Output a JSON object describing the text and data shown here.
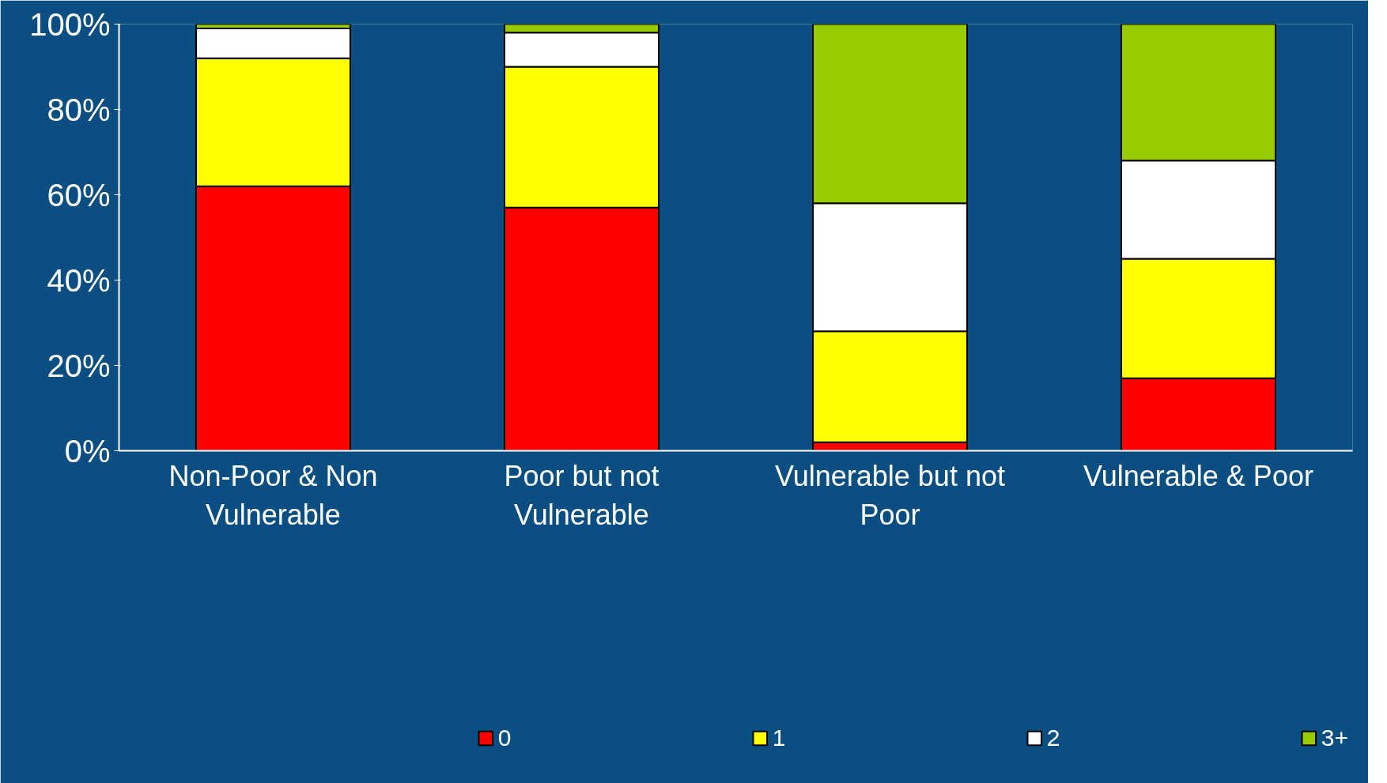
{
  "chart_data": {
    "type": "bar",
    "stacked": true,
    "categories": [
      "Non-Poor & Non Vulnerable",
      "Poor but not Vulnerable",
      "Vulnerable but not Poor",
      "Vulnerable & Poor"
    ],
    "series": [
      {
        "name": "0",
        "color": "#ff0000",
        "values": [
          62,
          57,
          2,
          17
        ]
      },
      {
        "name": "1",
        "color": "#ffff00",
        "values": [
          30,
          33,
          26,
          28
        ]
      },
      {
        "name": "2",
        "color": "#ffffff",
        "values": [
          7,
          8,
          30,
          23
        ]
      },
      {
        "name": "3+",
        "color": "#99cc00",
        "values": [
          1,
          2,
          42,
          32
        ]
      }
    ],
    "ylim": [
      0,
      100
    ],
    "yticks": [
      {
        "value": 0,
        "label": "0%"
      },
      {
        "value": 20,
        "label": "20%"
      },
      {
        "value": 40,
        "label": "40%"
      },
      {
        "value": 60,
        "label": "60%"
      },
      {
        "value": 80,
        "label": "80%"
      },
      {
        "value": 100,
        "label": "100%"
      }
    ],
    "grid": false,
    "legend": "bottom"
  }
}
